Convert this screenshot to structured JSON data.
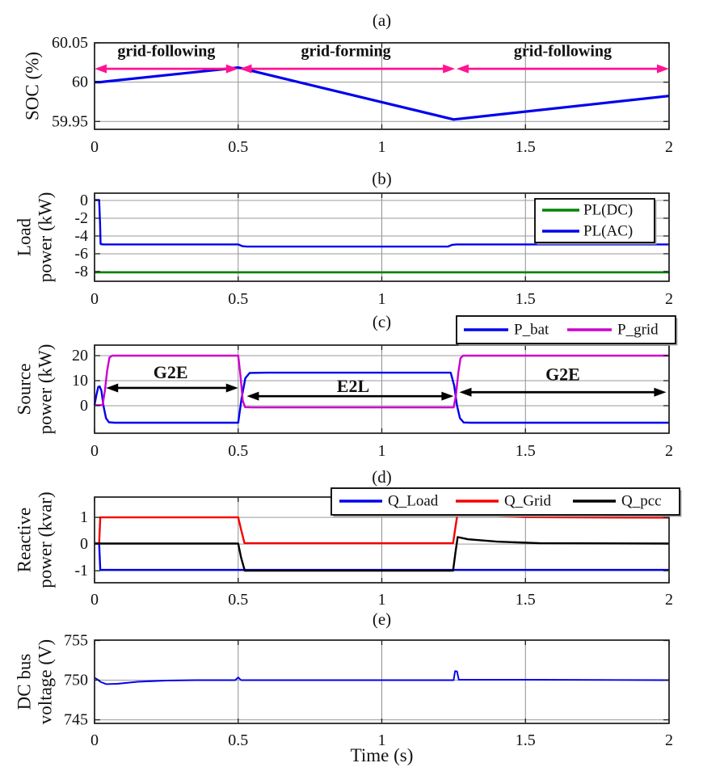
{
  "xlabel": "Time (s)",
  "colors": {
    "blue": "#0000EE",
    "green": "#068206",
    "magenta": "#CC00CC",
    "red": "#F40000",
    "black": "#000000",
    "arrow_pink": "#FF1493",
    "annotation_blue": "#0000DC",
    "grid_gray": "#9a9a9a",
    "axis": "#1a1a1a"
  },
  "x_ticks": [
    {
      "v": 0,
      "label": "0"
    },
    {
      "v": 0.5,
      "label": "0.5"
    },
    {
      "v": 1,
      "label": "1"
    },
    {
      "v": 1.5,
      "label": "1.5"
    },
    {
      "v": 2,
      "label": "2"
    }
  ],
  "chart_data": [
    {
      "id": "a",
      "type": "line",
      "title": "(a)",
      "ylabel_lines": [
        "SOC (%)"
      ],
      "xlim": [
        0,
        2
      ],
      "ylim": [
        59.94,
        60.05
      ],
      "yticks": [
        {
          "v": 59.95,
          "label": "59.95"
        },
        {
          "v": 60,
          "label": "60"
        },
        {
          "v": 60.05,
          "label": "60.05"
        }
      ],
      "series": [
        {
          "name": "SOC",
          "color": "#0000EE",
          "width": 3.2,
          "points": [
            [
              0,
              60.0
            ],
            [
              0.02,
              60.0
            ],
            [
              0.5,
              60.0185
            ],
            [
              1.25,
              59.9525
            ],
            [
              2,
              59.9825
            ]
          ]
        }
      ],
      "legend": null,
      "annotations": {
        "arrows": [
          {
            "x1": 0,
            "x2": 0.5,
            "y": 60.017,
            "color": "#FF1493"
          },
          {
            "x1": 0.505,
            "x2": 1.255,
            "y": 60.017,
            "color": "#FF1493"
          },
          {
            "x1": 1.26,
            "x2": 2,
            "y": 60.017,
            "color": "#FF1493"
          }
        ],
        "texts": [
          {
            "x": 0.25,
            "y": 60.039,
            "text": "grid-following",
            "color": "#0000DC",
            "size": 20
          },
          {
            "x": 0.875,
            "y": 60.039,
            "text": "grid-forming",
            "color": "#F40000",
            "size": 20
          },
          {
            "x": 1.63,
            "y": 60.039,
            "text": "grid-following",
            "color": "#0000DC",
            "size": 20
          }
        ]
      }
    },
    {
      "id": "b",
      "type": "line",
      "title": "(b)",
      "ylabel_lines": [
        "Load",
        "power (kW)"
      ],
      "xlim": [
        0,
        2
      ],
      "ylim": [
        -9.1,
        0.82
      ],
      "yticks": [
        {
          "v": 0,
          "label": "0"
        },
        {
          "v": -2,
          "label": "-2"
        },
        {
          "v": -4,
          "label": "-4"
        },
        {
          "v": -6,
          "label": "-6"
        },
        {
          "v": -8,
          "label": "-8"
        }
      ],
      "series": [
        {
          "name": "PL(DC)",
          "color": "#068206",
          "width": 2.4,
          "points": [
            [
              0,
              -8.1
            ],
            [
              2,
              -8.1
            ]
          ]
        },
        {
          "name": "PL(AC)",
          "color": "#0000EE",
          "width": 2.4,
          "points": [
            [
              0,
              0.05
            ],
            [
              0.016,
              0.05
            ],
            [
              0.019,
              -2.5
            ],
            [
              0.021,
              -4.9
            ],
            [
              0.03,
              -4.95
            ],
            [
              0.5,
              -4.95
            ],
            [
              0.515,
              -5.15
            ],
            [
              0.53,
              -5.2
            ],
            [
              1.23,
              -5.2
            ],
            [
              1.245,
              -5.0
            ],
            [
              1.26,
              -4.95
            ],
            [
              2,
              -4.95
            ]
          ]
        }
      ],
      "legend": {
        "orientation": "vertical",
        "entries": [
          {
            "label": "PL(DC)",
            "color": "#068206"
          },
          {
            "label": "PL(AC)",
            "color": "#0000EE"
          }
        ]
      },
      "annotations": {
        "arrows": [],
        "texts": []
      }
    },
    {
      "id": "c",
      "type": "line",
      "title": "(c)",
      "ylabel_lines": [
        "Source",
        "power (kW)"
      ],
      "xlim": [
        0,
        2
      ],
      "ylim": [
        -11.0,
        24.2
      ],
      "yticks": [
        {
          "v": 0,
          "label": "0"
        },
        {
          "v": 10,
          "label": "10"
        },
        {
          "v": 20,
          "label": "20"
        }
      ],
      "series": [
        {
          "name": "P_bat",
          "color": "#0000EE",
          "width": 2.4,
          "points": [
            [
              0,
              0.3
            ],
            [
              0.006,
              4
            ],
            [
              0.013,
              7.5
            ],
            [
              0.018,
              7.7
            ],
            [
              0.024,
              6
            ],
            [
              0.031,
              0
            ],
            [
              0.04,
              -5
            ],
            [
              0.05,
              -6.6
            ],
            [
              0.07,
              -6.8
            ],
            [
              0.5,
              -6.8
            ],
            [
              0.512,
              3
            ],
            [
              0.525,
              11
            ],
            [
              0.54,
              13.1
            ],
            [
              0.6,
              13.2
            ],
            [
              1.24,
              13.2
            ],
            [
              1.252,
              8
            ],
            [
              1.262,
              0
            ],
            [
              1.272,
              -5
            ],
            [
              1.285,
              -6.7
            ],
            [
              1.31,
              -6.8
            ],
            [
              2,
              -6.8
            ]
          ]
        },
        {
          "name": "P_grid",
          "color": "#CC00CC",
          "width": 2.4,
          "points": [
            [
              0,
              0.2
            ],
            [
              0.028,
              0.2
            ],
            [
              0.036,
              6
            ],
            [
              0.044,
              14
            ],
            [
              0.052,
              19.3
            ],
            [
              0.062,
              20
            ],
            [
              0.5,
              20
            ],
            [
              0.508,
              12
            ],
            [
              0.516,
              2
            ],
            [
              0.524,
              -0.6
            ],
            [
              0.55,
              -0.7
            ],
            [
              1.25,
              -0.7
            ],
            [
              1.258,
              4
            ],
            [
              1.266,
              13
            ],
            [
              1.274,
              19
            ],
            [
              1.283,
              20
            ],
            [
              2,
              20
            ]
          ]
        }
      ],
      "legend": {
        "orientation": "horizontal",
        "entries": [
          {
            "label": "P_bat",
            "color": "#0000EE"
          },
          {
            "label": "P_grid",
            "color": "#CC00CC"
          }
        ]
      },
      "annotations": {
        "arrows": [
          {
            "x1": 0.04,
            "x2": 0.5,
            "y": 7.1,
            "color": "#000000"
          },
          {
            "x1": 0.53,
            "x2": 1.25,
            "y": 3.8,
            "color": "#000000"
          },
          {
            "x1": 1.27,
            "x2": 1.99,
            "y": 5.4,
            "color": "#000000"
          }
        ],
        "texts": [
          {
            "x": 0.265,
            "y": 13.4,
            "text": "G2E",
            "color": "#0000DC",
            "size": 22
          },
          {
            "x": 0.9,
            "y": 7.9,
            "text": "E2L",
            "color": "#F40000",
            "size": 22
          },
          {
            "x": 1.63,
            "y": 12.5,
            "text": "G2E",
            "color": "#0000DC",
            "size": 22
          }
        ]
      }
    },
    {
      "id": "d",
      "type": "line",
      "title": "(d)",
      "ylabel_lines": [
        "Reactive",
        "power (kvar)"
      ],
      "xlim": [
        0,
        2
      ],
      "ylim": [
        -1.45,
        1.76
      ],
      "yticks": [
        {
          "v": 1,
          "label": "1"
        },
        {
          "v": 0,
          "label": "0"
        },
        {
          "v": -1,
          "label": "-1"
        }
      ],
      "series": [
        {
          "name": "Q_Load",
          "color": "#0000EE",
          "width": 2.4,
          "points": [
            [
              0,
              0.02
            ],
            [
              0.016,
              0.02
            ],
            [
              0.02,
              -0.97
            ],
            [
              2,
              -0.97
            ]
          ]
        },
        {
          "name": "Q_Grid",
          "color": "#F40000",
          "width": 2.4,
          "points": [
            [
              0,
              0.02
            ],
            [
              0.016,
              0.02
            ],
            [
              0.02,
              1.0
            ],
            [
              0.5,
              1.0
            ],
            [
              0.51,
              0.55
            ],
            [
              0.522,
              0.03
            ],
            [
              1.248,
              0.03
            ],
            [
              1.256,
              0.6
            ],
            [
              1.264,
              1.18
            ],
            [
              1.3,
              1.13
            ],
            [
              1.38,
              1.06
            ],
            [
              1.5,
              1.01
            ],
            [
              1.65,
              1.0
            ],
            [
              2,
              0.99
            ]
          ]
        },
        {
          "name": "Q_pcc",
          "color": "#000000",
          "width": 2.4,
          "points": [
            [
              0,
              0.02
            ],
            [
              0.5,
              0.02
            ],
            [
              0.51,
              -0.5
            ],
            [
              0.523,
              -1.0
            ],
            [
              1.248,
              -1.0
            ],
            [
              1.256,
              -0.35
            ],
            [
              1.264,
              0.26
            ],
            [
              1.3,
              0.18
            ],
            [
              1.4,
              0.09
            ],
            [
              1.55,
              0.03
            ],
            [
              2,
              0.02
            ]
          ]
        }
      ],
      "legend": {
        "orientation": "horizontal",
        "entries": [
          {
            "label": "Q_Load",
            "color": "#0000EE"
          },
          {
            "label": "Q_Grid",
            "color": "#F40000"
          },
          {
            "label": "Q_pcc",
            "color": "#000000"
          }
        ]
      },
      "annotations": {
        "arrows": [],
        "texts": []
      }
    },
    {
      "id": "e",
      "type": "line",
      "title": "(e)",
      "ylabel_lines": [
        "DC bus",
        "voltage (V)"
      ],
      "xlim": [
        0,
        2
      ],
      "ylim": [
        744.55,
        755.05
      ],
      "yticks": [
        {
          "v": 755,
          "label": "755"
        },
        {
          "v": 750,
          "label": "750"
        },
        {
          "v": 745,
          "label": "745"
        }
      ],
      "series": [
        {
          "name": "Vdc",
          "color": "#0000EE",
          "width": 1.9,
          "points": [
            [
              0,
              750.3
            ],
            [
              0.01,
              750.1
            ],
            [
              0.02,
              749.8
            ],
            [
              0.04,
              749.5
            ],
            [
              0.08,
              749.55
            ],
            [
              0.15,
              749.8
            ],
            [
              0.25,
              749.95
            ],
            [
              0.35,
              750.0
            ],
            [
              0.49,
              750.0
            ],
            [
              0.5,
              750.35
            ],
            [
              0.51,
              750.0
            ],
            [
              1.0,
              750.0
            ],
            [
              1.25,
              750.0
            ],
            [
              1.255,
              751.15
            ],
            [
              1.262,
              751.1
            ],
            [
              1.268,
              750.05
            ],
            [
              1.5,
              750.05
            ],
            [
              2,
              750.0
            ]
          ]
        }
      ],
      "legend": null,
      "annotations": {
        "arrows": [],
        "texts": []
      }
    }
  ]
}
